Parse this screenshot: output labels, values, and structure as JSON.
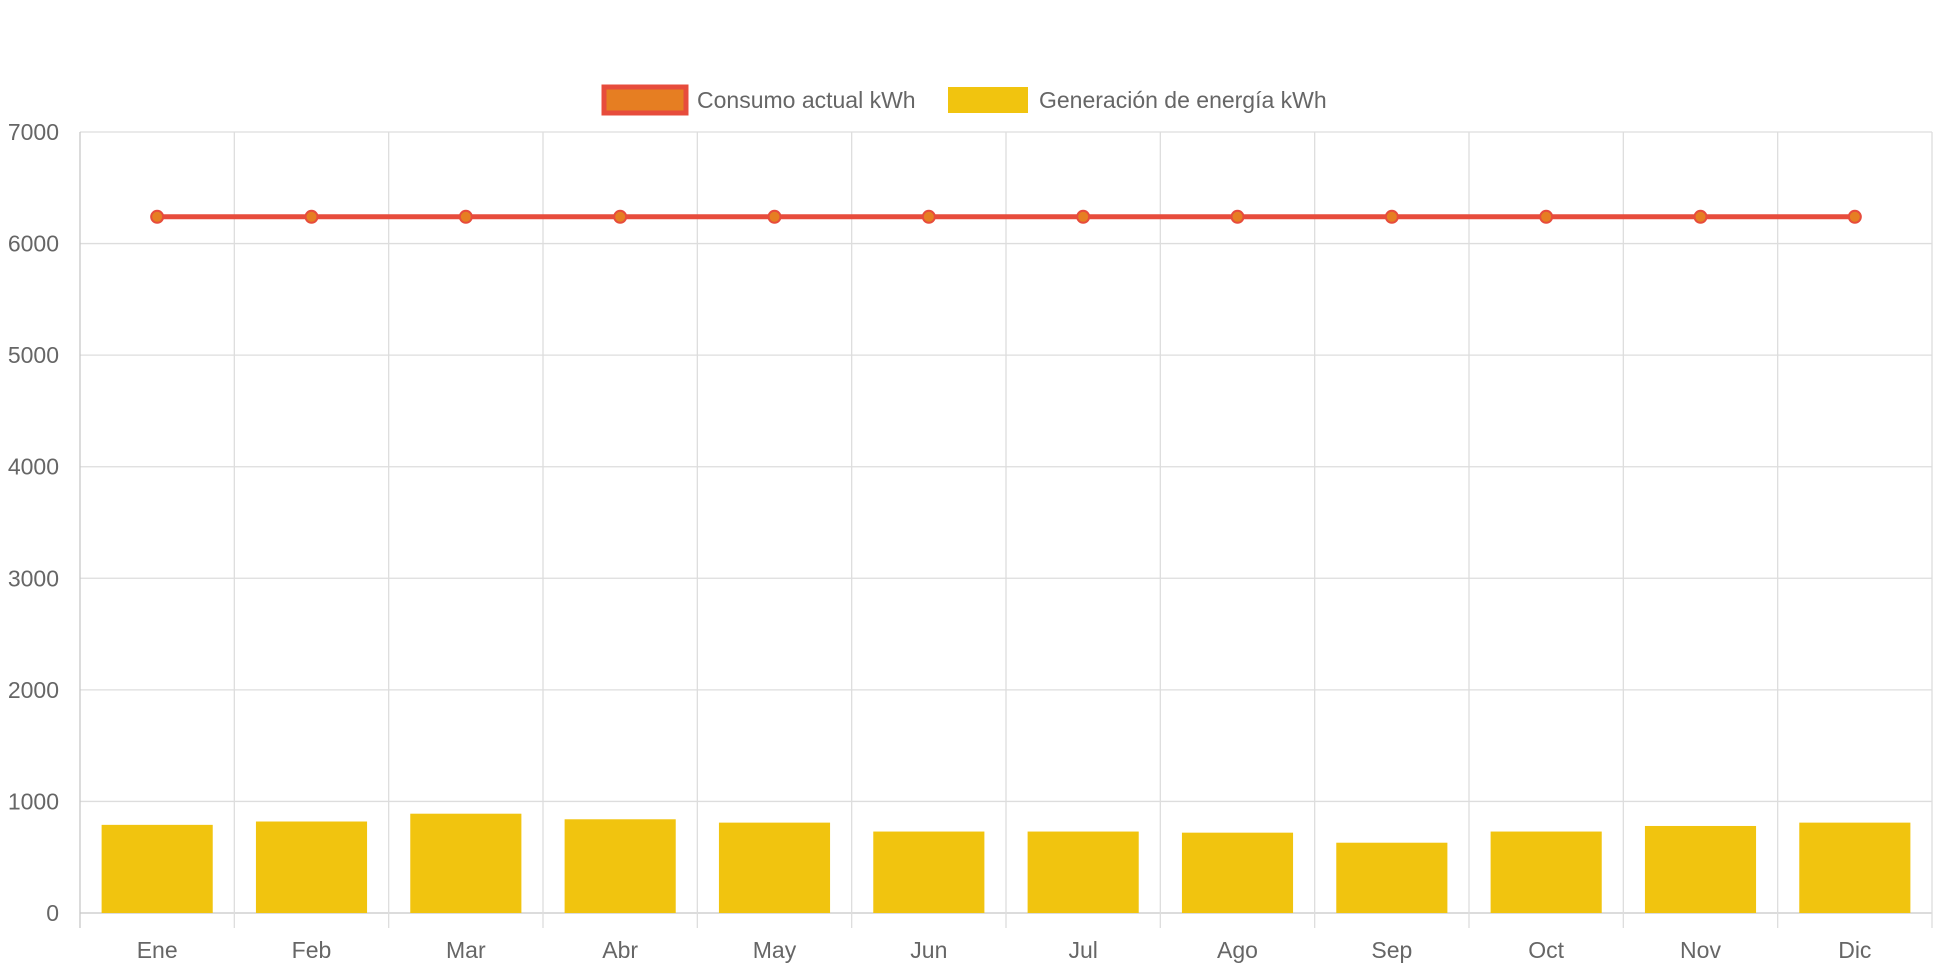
{
  "chart_data": {
    "type": "bar",
    "categories": [
      "Ene",
      "Feb",
      "Mar",
      "Abr",
      "May",
      "Jun",
      "Jul",
      "Ago",
      "Sep",
      "Oct",
      "Nov",
      "Dic"
    ],
    "series": [
      {
        "name": "Consumo actual kWh",
        "type": "line",
        "values": [
          6240,
          6240,
          6240,
          6240,
          6240,
          6240,
          6240,
          6240,
          6240,
          6240,
          6240,
          6240
        ],
        "color": "#e74c3c",
        "point_color": "#e67e22"
      },
      {
        "name": "Generación de energía kWh",
        "type": "bar",
        "values": [
          790,
          820,
          890,
          840,
          810,
          730,
          730,
          720,
          630,
          730,
          780,
          810
        ],
        "color": "#f1c40f"
      }
    ],
    "ylim": [
      0,
      7000
    ],
    "yticks": [
      0,
      1000,
      2000,
      3000,
      4000,
      5000,
      6000,
      7000
    ],
    "grid": true,
    "legend_position": "top"
  }
}
